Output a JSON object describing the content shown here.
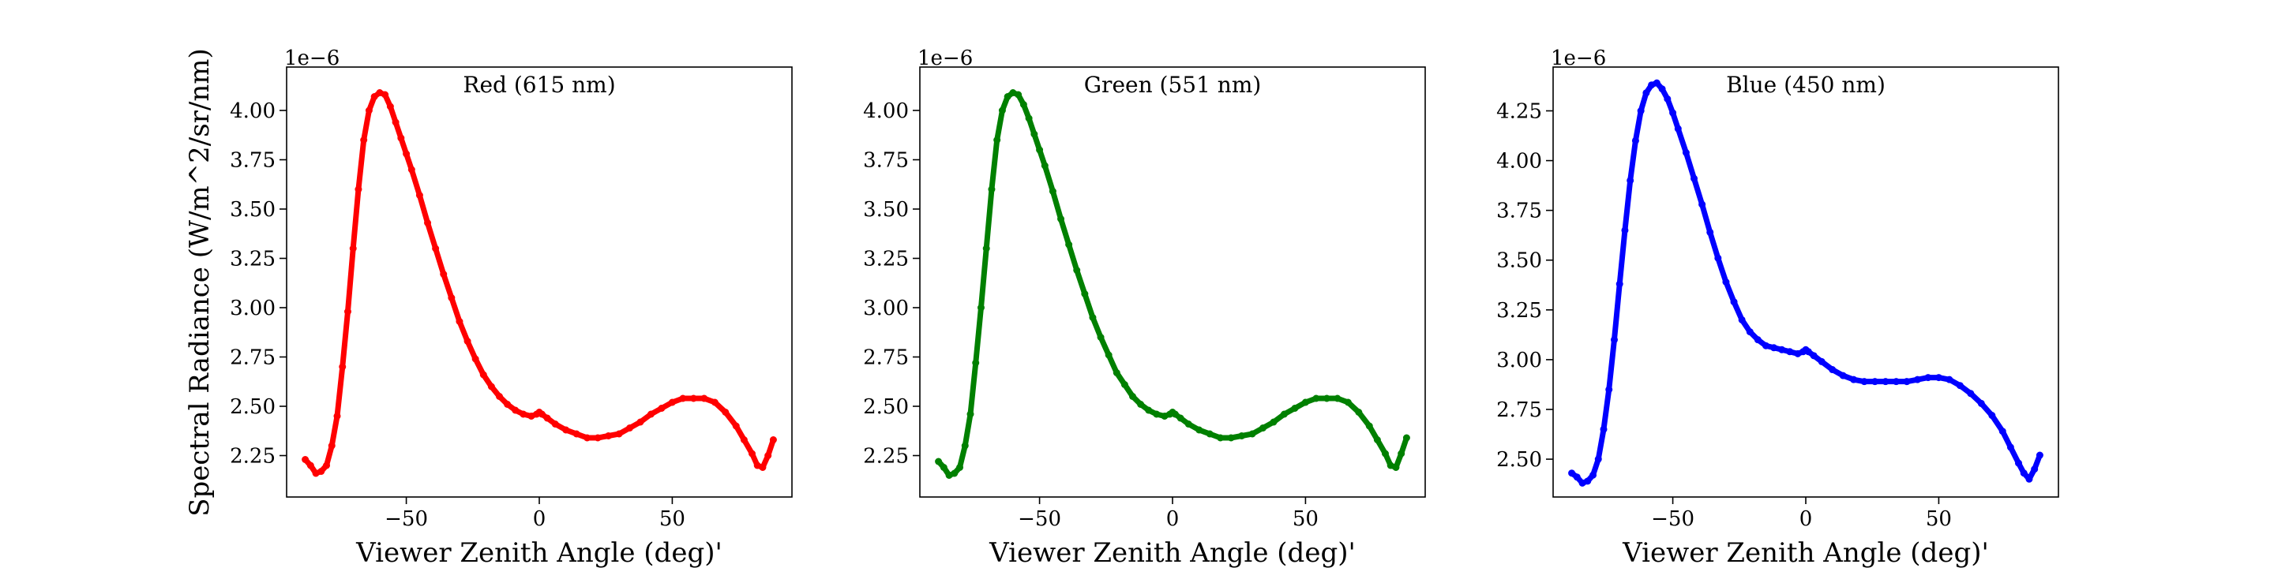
{
  "chart_data": [
    {
      "type": "scatter",
      "title": "Red (615 nm)",
      "xlabel": "Viewer Zenith Angle (deg)'",
      "ylabel": "Spectral Radiance (W/m^2/sr/nm)",
      "offset_text": "1e−6",
      "color": "#ff0000",
      "xlim": [
        -95,
        95
      ],
      "ylim": [
        2.04,
        4.22
      ],
      "xticks": [
        -50,
        0,
        50
      ],
      "yticks": [
        2.25,
        2.5,
        2.75,
        3.0,
        3.25,
        3.5,
        3.75,
        4.0
      ],
      "xtick_labels": [
        "−50",
        "0",
        "50"
      ],
      "ytick_labels": [
        "2.25",
        "2.50",
        "2.75",
        "3.00",
        "3.25",
        "3.50",
        "3.75",
        "4.00"
      ],
      "series": [
        {
          "x": [
            -88,
            -86,
            -84,
            -82,
            -80,
            -78,
            -76,
            -74,
            -72,
            -70,
            -68,
            -66,
            -64,
            -62,
            -60,
            -58,
            -56,
            -54,
            -52,
            -50,
            -48,
            -45,
            -42,
            -39,
            -36,
            -33,
            -30,
            -27,
            -24,
            -21,
            -18,
            -15,
            -12,
            -9,
            -6,
            -3,
            -1,
            0,
            1,
            3,
            6,
            10,
            14,
            18,
            22,
            26,
            30,
            34,
            38,
            42,
            46,
            50,
            54,
            58,
            62,
            66,
            70,
            74,
            77,
            80,
            82,
            84,
            86,
            88
          ],
          "y": [
            2.23,
            2.2,
            2.16,
            2.17,
            2.2,
            2.3,
            2.45,
            2.7,
            2.98,
            3.3,
            3.6,
            3.85,
            4.0,
            4.07,
            4.09,
            4.08,
            4.02,
            3.94,
            3.86,
            3.78,
            3.7,
            3.57,
            3.43,
            3.3,
            3.17,
            3.05,
            2.93,
            2.83,
            2.74,
            2.66,
            2.6,
            2.55,
            2.51,
            2.48,
            2.46,
            2.45,
            2.46,
            2.47,
            2.46,
            2.44,
            2.41,
            2.38,
            2.36,
            2.34,
            2.34,
            2.35,
            2.36,
            2.39,
            2.42,
            2.46,
            2.49,
            2.52,
            2.54,
            2.54,
            2.54,
            2.52,
            2.47,
            2.4,
            2.33,
            2.26,
            2.2,
            2.19,
            2.25,
            2.33
          ]
        }
      ]
    },
    {
      "type": "scatter",
      "title": "Green (551 nm)",
      "xlabel": "Viewer Zenith Angle (deg)'",
      "ylabel": "",
      "offset_text": "1e−6",
      "color": "#008000",
      "xlim": [
        -95,
        95
      ],
      "ylim": [
        2.04,
        4.22
      ],
      "xticks": [
        -50,
        0,
        50
      ],
      "yticks": [
        2.25,
        2.5,
        2.75,
        3.0,
        3.25,
        3.5,
        3.75,
        4.0
      ],
      "xtick_labels": [
        "−50",
        "0",
        "50"
      ],
      "ytick_labels": [
        "2.25",
        "2.50",
        "2.75",
        "3.00",
        "3.25",
        "3.50",
        "3.75",
        "4.00"
      ],
      "series": [
        {
          "x": [
            -88,
            -86,
            -84,
            -82,
            -80,
            -78,
            -76,
            -74,
            -72,
            -70,
            -68,
            -66,
            -64,
            -62,
            -60,
            -58,
            -56,
            -54,
            -52,
            -50,
            -48,
            -45,
            -42,
            -39,
            -36,
            -33,
            -30,
            -27,
            -24,
            -21,
            -18,
            -15,
            -12,
            -9,
            -6,
            -3,
            -1,
            0,
            1,
            3,
            6,
            10,
            14,
            18,
            22,
            26,
            30,
            34,
            38,
            42,
            46,
            50,
            54,
            58,
            62,
            66,
            70,
            74,
            77,
            80,
            82,
            84,
            86,
            88
          ],
          "y": [
            2.22,
            2.19,
            2.15,
            2.16,
            2.19,
            2.3,
            2.46,
            2.72,
            3.0,
            3.3,
            3.6,
            3.85,
            4.0,
            4.07,
            4.09,
            4.08,
            4.03,
            3.96,
            3.88,
            3.8,
            3.72,
            3.59,
            3.45,
            3.32,
            3.19,
            3.07,
            2.95,
            2.85,
            2.76,
            2.67,
            2.61,
            2.55,
            2.51,
            2.48,
            2.46,
            2.45,
            2.46,
            2.47,
            2.46,
            2.44,
            2.41,
            2.38,
            2.36,
            2.34,
            2.34,
            2.35,
            2.36,
            2.39,
            2.42,
            2.46,
            2.49,
            2.52,
            2.54,
            2.54,
            2.54,
            2.52,
            2.47,
            2.4,
            2.33,
            2.26,
            2.2,
            2.19,
            2.26,
            2.34
          ]
        }
      ]
    },
    {
      "type": "scatter",
      "title": "Blue (450 nm)",
      "xlabel": "Viewer Zenith Angle (deg)'",
      "ylabel": "",
      "offset_text": "1e−6",
      "color": "#0000ff",
      "xlim": [
        -95,
        95
      ],
      "ylim": [
        2.31,
        4.47
      ],
      "xticks": [
        -50,
        0,
        50
      ],
      "yticks": [
        2.5,
        2.75,
        3.0,
        3.25,
        3.5,
        3.75,
        4.0,
        4.25
      ],
      "xtick_labels": [
        "−50",
        "0",
        "50"
      ],
      "ytick_labels": [
        "2.50",
        "2.75",
        "3.00",
        "3.25",
        "3.50",
        "3.75",
        "4.00",
        "4.25"
      ],
      "series": [
        {
          "x": [
            -88,
            -86,
            -84,
            -82,
            -80,
            -78,
            -76,
            -74,
            -72,
            -70,
            -68,
            -66,
            -64,
            -62,
            -60,
            -58,
            -56,
            -54,
            -52,
            -50,
            -48,
            -45,
            -42,
            -39,
            -36,
            -33,
            -30,
            -27,
            -24,
            -21,
            -18,
            -15,
            -12,
            -9,
            -6,
            -3,
            -1,
            0,
            1,
            3,
            6,
            10,
            14,
            18,
            22,
            26,
            30,
            34,
            38,
            42,
            46,
            50,
            54,
            58,
            62,
            66,
            70,
            74,
            77,
            80,
            82,
            84,
            86,
            88
          ],
          "y": [
            2.43,
            2.41,
            2.38,
            2.39,
            2.42,
            2.5,
            2.65,
            2.85,
            3.1,
            3.38,
            3.65,
            3.9,
            4.1,
            4.25,
            4.34,
            4.38,
            4.39,
            4.36,
            4.31,
            4.24,
            4.16,
            4.04,
            3.91,
            3.78,
            3.64,
            3.51,
            3.39,
            3.29,
            3.2,
            3.14,
            3.1,
            3.07,
            3.06,
            3.05,
            3.04,
            3.03,
            3.04,
            3.05,
            3.04,
            3.02,
            2.99,
            2.95,
            2.92,
            2.9,
            2.89,
            2.89,
            2.89,
            2.89,
            2.89,
            2.9,
            2.91,
            2.91,
            2.9,
            2.87,
            2.83,
            2.78,
            2.72,
            2.64,
            2.56,
            2.48,
            2.43,
            2.4,
            2.45,
            2.52
          ]
        }
      ]
    }
  ]
}
